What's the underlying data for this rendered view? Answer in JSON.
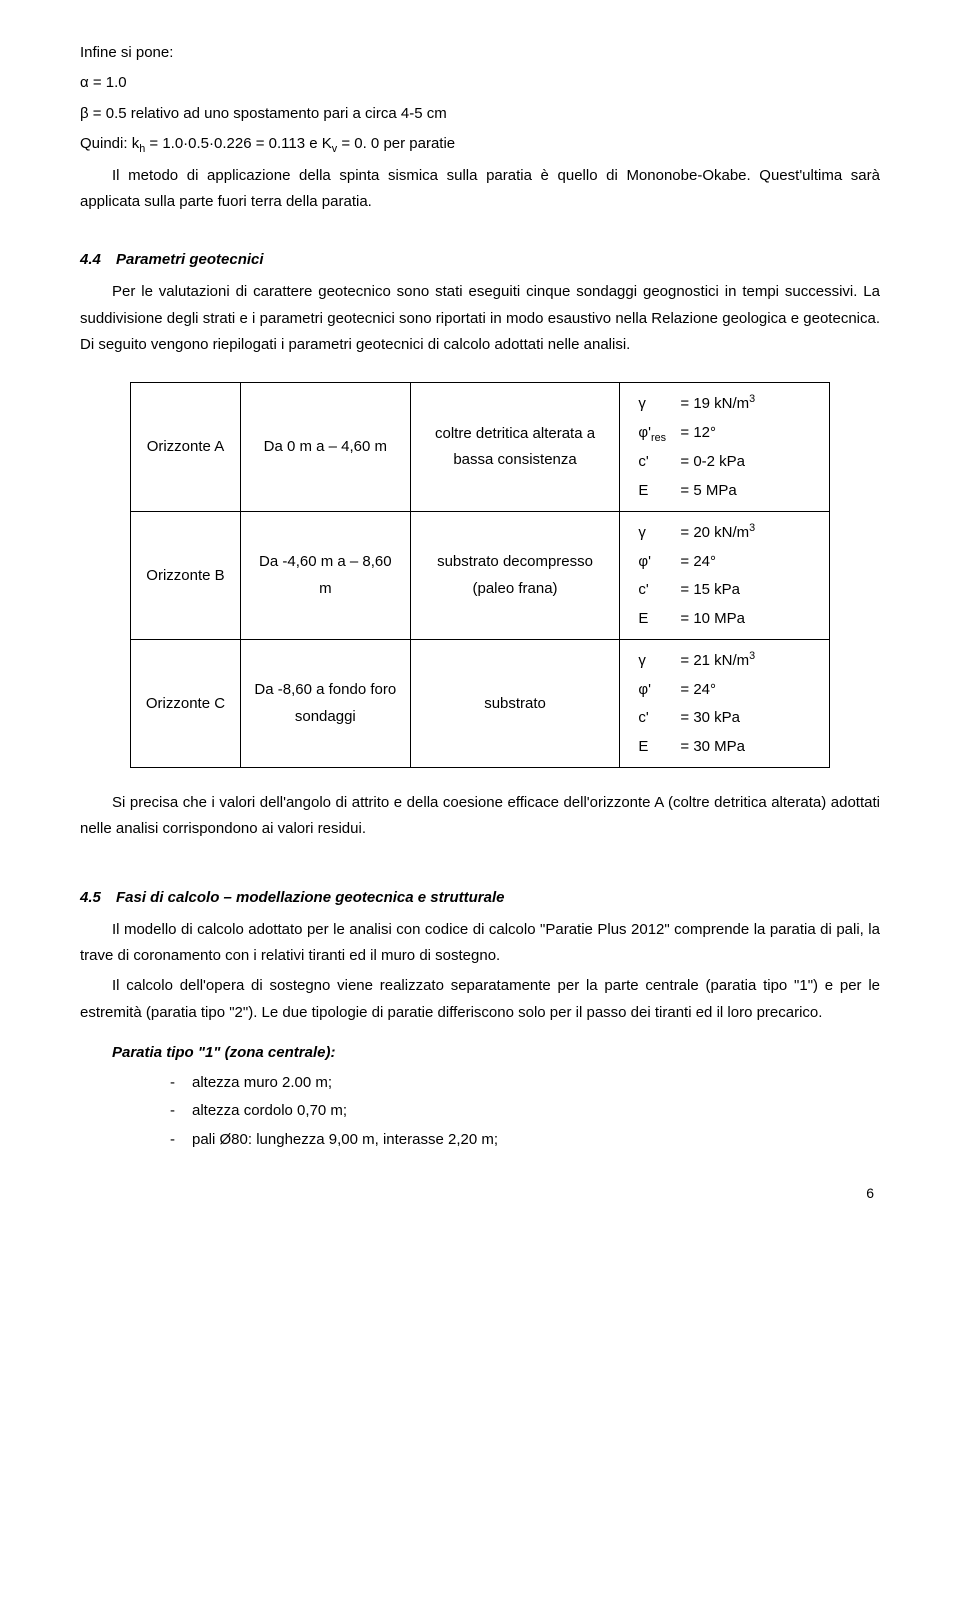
{
  "intro": {
    "l1": "Infine si pone:",
    "l2": "α = 1.0",
    "l3": "β = 0.5 relativo ad uno spostamento pari a circa 4-5 cm",
    "l4_pre": "Quindi:    k",
    "l4_sub1": "h",
    "l4_mid": " = 1.0·0.5·0.226 = 0.113   e   K",
    "l4_sub2": "v",
    "l4_post": " = 0. 0 per paratie",
    "l5": "Il metodo di applicazione della spinta sismica sulla paratia è quello di Mononobe-Okabe. Quest'ultima sarà applicata sulla parte fuori terra della paratia."
  },
  "s44": {
    "num": "4.4",
    "title": "Parametri  geotecnici",
    "body": "Per le valutazioni di carattere geotecnico sono stati eseguiti cinque sondaggi geognostici in tempi successivi. La suddivisione degli strati e i parametri geotecnici sono riportati in modo esaustivo nella Relazione geologica e geotecnica. Di seguito vengono riepilogati i parametri geotecnici di calcolo adottati nelle analisi."
  },
  "table": {
    "rows": [
      {
        "name": "Orizzonte A",
        "range": "Da 0 m a – 4,60  m",
        "desc": "coltre detritica alterata a bassa consistenza",
        "p": {
          "g_sym": "γ",
          "g_val": "=  19 kN/m",
          "g_sup": "3",
          "phi_sym": "φ'",
          "phi_sub": "res",
          "phi_val": "=  12°",
          "c_sym": "c'",
          "c_val": "=  0-2 kPa",
          "e_sym": "E",
          "e_val": "=  5 MPa"
        }
      },
      {
        "name": "Orizzonte B",
        "range": "Da -4,60 m a – 8,60  m",
        "desc": "substrato decompresso (paleo frana)",
        "p": {
          "g_sym": "γ",
          "g_val": "=  20 kN/m",
          "g_sup": "3",
          "phi_sym": "φ'",
          "phi_sub": "",
          "phi_val": "=  24°",
          "c_sym": "c'",
          "c_val": "=  15 kPa",
          "e_sym": "E",
          "e_val": "=  10 MPa"
        }
      },
      {
        "name": "Orizzonte C",
        "range": "Da  -8,60 a fondo foro sondaggi",
        "desc": "substrato",
        "p": {
          "g_sym": "γ",
          "g_val": "=  21 kN/m",
          "g_sup": "3",
          "phi_sym": "φ'",
          "phi_sub": "",
          "phi_val": "=  24°",
          "c_sym": "c'",
          "c_val": "=  30 kPa",
          "e_sym": "E",
          "e_val": "=  30 MPa"
        }
      }
    ]
  },
  "after_table": "Si precisa che i valori dell'angolo di attrito e della coesione efficace dell'orizzonte A (coltre detritica alterata) adottati nelle analisi corrispondono ai valori residui.",
  "s45": {
    "num": "4.5",
    "title": "Fasi di calcolo – modellazione geotecnica e strutturale",
    "p1": "Il modello di calcolo adottato per le analisi con codice di calcolo \"Paratie Plus 2012\" comprende la paratia di pali, la trave di coronamento con i relativi tiranti ed il muro di sostegno.",
    "p2": "Il calcolo dell'opera di sostegno viene realizzato separatamente per la parte centrale (paratia tipo \"1\") e per le estremità (paratia tipo \"2\"). Le due tipologie di paratie differiscono solo per il passo dei tiranti ed il loro precarico.",
    "sub": "Paratia tipo \"1\" (zona centrale):",
    "li1": "altezza muro 2.00 m;",
    "li2": "altezza cordolo 0,70 m;",
    "li3": "pali Ø80:  lunghezza 9,00 m, interasse 2,20 m;"
  },
  "pagenum": "6"
}
